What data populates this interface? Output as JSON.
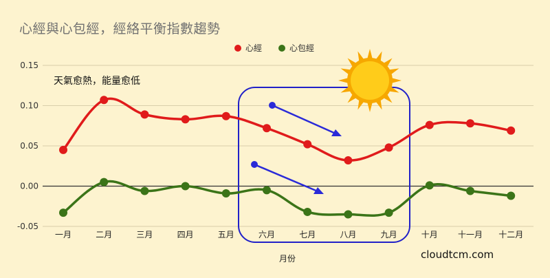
{
  "chart_data": {
    "type": "line",
    "title": "心經與心包經，經絡平衡指數趨勢",
    "xlabel": "月份",
    "ylabel": "",
    "categories": [
      "一月",
      "二月",
      "三月",
      "四月",
      "五月",
      "六月",
      "七月",
      "八月",
      "九月",
      "十月",
      "十一月",
      "十二月"
    ],
    "series": [
      {
        "name": "心經",
        "color": "#e01b1b",
        "values": [
          0.045,
          0.107,
          0.089,
          0.083,
          0.087,
          0.072,
          0.052,
          0.032,
          0.048,
          0.076,
          0.078,
          0.069
        ]
      },
      {
        "name": "心包經",
        "color": "#3b7418",
        "values": [
          -0.033,
          0.005,
          -0.006,
          0.0,
          -0.009,
          -0.005,
          -0.032,
          -0.035,
          -0.033,
          0.001,
          -0.006,
          -0.012
        ]
      }
    ],
    "yticks": [
      "0.15",
      "0.10",
      "0.05",
      "0.00",
      "-0.05"
    ],
    "ylim": [
      -0.05,
      0.15
    ],
    "grid": true,
    "legend": "top-center",
    "annotation": "天氣愈熱，能量愈低",
    "watermark": "cloudtcm.com",
    "highlight": "六月–九月",
    "icons": [
      "sun-icon",
      "arrow-down-right-icon"
    ]
  }
}
